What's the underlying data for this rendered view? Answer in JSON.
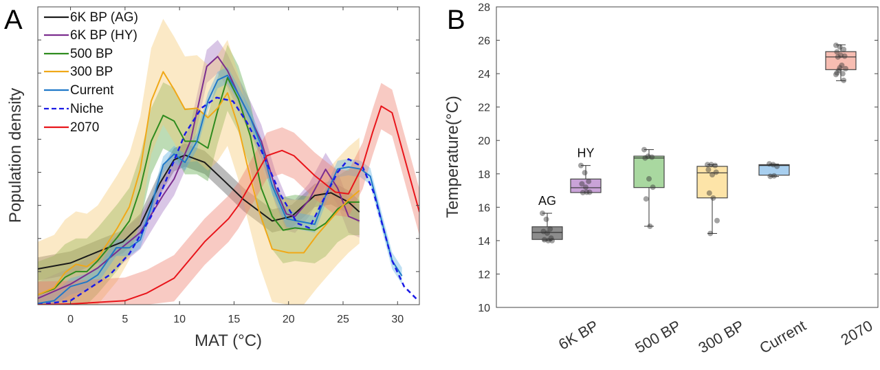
{
  "chart_data": [
    {
      "panel": "A",
      "type": "line",
      "xlabel": "MAT (°C)",
      "ylabel": "Population density",
      "xlim": [
        -3,
        32
      ],
      "ylim": [
        0,
        9
      ],
      "xticks": [
        0,
        5,
        10,
        15,
        20,
        25,
        30
      ],
      "y_tick_count": 9,
      "y_tick_labels_shown": false,
      "grid": false,
      "legend_position": "top-left",
      "series": [
        {
          "name": "6K BP (AG)",
          "color": "#1a1a1a",
          "dash": false,
          "band_color": "#555555",
          "band_halfwidth": 0.35,
          "x": [
            -3,
            0,
            2.5,
            4.8,
            6.4,
            8.2,
            9.5,
            10.5,
            12.3,
            14.1,
            15.9,
            18.5,
            20.3,
            22.4,
            23.9,
            25.5,
            26.5
          ],
          "y": [
            1.08,
            1.26,
            1.6,
            1.9,
            2.4,
            3.67,
            4.38,
            4.52,
            4.3,
            3.74,
            3.17,
            2.53,
            2.67,
            3.3,
            3.38,
            3.1,
            2.8
          ]
        },
        {
          "name": "6K BP (HY)",
          "color": "#7b2d8e",
          "dash": false,
          "band_color": "#a070c0",
          "band_halfwidth": 0.5,
          "x": [
            -3,
            0,
            2.5,
            4.8,
            6.4,
            8.5,
            9.5,
            11,
            12.5,
            13.5,
            14.4,
            15.4,
            16.5,
            17.5,
            18.8,
            19.8,
            20.6,
            21.9,
            23.4,
            24.5,
            25.5,
            26.5
          ],
          "y": [
            0.19,
            0.62,
            1.11,
            1.75,
            2.18,
            3.31,
            3.8,
            4.94,
            7.2,
            7.5,
            7.07,
            6.36,
            5.65,
            4.94,
            3.52,
            2.74,
            2.67,
            3.17,
            4.09,
            3.52,
            2.67,
            2.53
          ]
        },
        {
          "name": "500 BP",
          "color": "#2e8b1e",
          "dash": false,
          "band_color": "#5aa845",
          "band_halfwidth": 1.0,
          "x": [
            -3,
            -1.5,
            -0.5,
            0.5,
            1.5,
            2.5,
            4.3,
            5.4,
            6.4,
            7.4,
            8.5,
            9.5,
            10.5,
            11.6,
            12.6,
            13.5,
            14.4,
            15.4,
            16.5,
            17.5,
            18.5,
            19.5,
            20.6,
            22.4,
            23.4,
            24.5,
            25.5,
            26.5
          ],
          "y": [
            0.3,
            0.48,
            0.83,
            1.0,
            1.0,
            1.33,
            2.04,
            2.53,
            3.52,
            4.94,
            5.72,
            5.55,
            4.94,
            4.94,
            4.73,
            5.87,
            6.86,
            6.22,
            5.09,
            3.52,
            2.67,
            2.25,
            2.32,
            2.25,
            2.46,
            2.89,
            3.1,
            3.1
          ]
        },
        {
          "name": "300 BP",
          "color": "#f0a818",
          "dash": false,
          "band_color": "#f5c870",
          "band_halfwidth": 1.6,
          "x": [
            -3,
            -1.5,
            -0.5,
            0.5,
            1.5,
            2.5,
            4.3,
            5.4,
            6.4,
            7.4,
            8.5,
            9.5,
            10.5,
            11.6,
            12.6,
            13.5,
            14.4,
            15.4,
            16.2,
            17.3,
            18.5,
            20,
            21.4,
            22.6,
            24.5,
            25.5,
            26.5
          ],
          "y": [
            0.3,
            0.51,
            0.97,
            1.22,
            1.15,
            1.4,
            2.32,
            2.96,
            4.09,
            6.15,
            7.04,
            6.5,
            5.9,
            5.94,
            5.65,
            5.94,
            6.4,
            5.37,
            4.23,
            2.82,
            1.68,
            1.57,
            1.57,
            2.1,
            2.82,
            3.17,
            3.45
          ]
        },
        {
          "name": "Current",
          "color": "#1f78c8",
          "dash": false,
          "band_color": "#5aaee0",
          "band_halfwidth": 0.25,
          "x": [
            -3,
            -1.5,
            0,
            1.5,
            2.5,
            4.2,
            5.4,
            6.4,
            7.4,
            8.5,
            9.5,
            10.5,
            11.6,
            12.6,
            13.5,
            14.4,
            15.4,
            16.5,
            17.5,
            18.5,
            19.8,
            20.8,
            22.4,
            23.4,
            24.5,
            25.5,
            26.6,
            27.5,
            28.6,
            29.5,
            30.4
          ],
          "y": [
            0.04,
            0.12,
            0.55,
            0.69,
            0.9,
            1.72,
            1.72,
            1.96,
            2.96,
            4.23,
            4.55,
            4.3,
            4.94,
            6.15,
            6.79,
            6.93,
            6.36,
            5.65,
            4.8,
            3.6,
            2.6,
            2.53,
            2.43,
            3.3,
            4.1,
            4.16,
            4.1,
            3.88,
            2.46,
            1.33,
            0.87
          ]
        },
        {
          "name": "Niche",
          "color": "#1a1ae6",
          "dash": true,
          "band_color": null,
          "band_halfwidth": 0,
          "x": [
            -3,
            0,
            3.6,
            5.4,
            7.4,
            9,
            10.5,
            12,
            13.4,
            14.9,
            16.2,
            17.5,
            19.3,
            20.8,
            21.9,
            23.4,
            24.5,
            25.5,
            26.8,
            27.8,
            29.5,
            30.6,
            31.9
          ],
          "y": [
            0,
            0.12,
            0.9,
            1.54,
            2.67,
            3.95,
            5.16,
            5.94,
            6.26,
            6.15,
            5.5,
            4.66,
            3.3,
            2.46,
            2.32,
            3.3,
            4.0,
            4.4,
            4.16,
            3.4,
            1.33,
            0.55,
            0.12
          ]
        },
        {
          "name": "2070",
          "color": "#e8141a",
          "dash": false,
          "band_color": "#ee7a6a",
          "band_halfwidth": 0.7,
          "x": [
            -3,
            0,
            5,
            7,
            9.5,
            12.3,
            14.5,
            15.4,
            18,
            19.4,
            20.5,
            22.4,
            24.3,
            25.5,
            26.8,
            27.7,
            28.5,
            29.5,
            32
          ],
          "y": [
            0,
            0.02,
            0.12,
            0.35,
            0.8,
            1.9,
            2.6,
            3.0,
            4.5,
            4.66,
            4.5,
            3.9,
            3.4,
            3.35,
            4.2,
            5.2,
            6.0,
            5.8,
            2.8
          ]
        }
      ]
    },
    {
      "panel": "B",
      "type": "box",
      "ylabel": "Temperature(°C)",
      "ylim": [
        10,
        28
      ],
      "yticks": [
        10,
        12,
        14,
        16,
        18,
        20,
        22,
        24,
        26,
        28
      ],
      "grid": false,
      "categories": [
        "6K BP",
        "500 BP",
        "300 BP",
        "Current",
        "2070"
      ],
      "boxes": [
        {
          "category": "6K BP",
          "annotation": "AG",
          "color": "#8c8c8c",
          "min": 14.0,
          "q1": 14.07,
          "median": 14.49,
          "q3": 14.83,
          "max": 15.64,
          "points": [
            15.64,
            15.28,
            14.7,
            14.55,
            14.45,
            14.15,
            14.05,
            14.0,
            14.0
          ]
        },
        {
          "category": "6K BP",
          "annotation": "HY",
          "color": "#c9a3d8",
          "min": 16.88,
          "q1": 16.88,
          "median": 17.17,
          "q3": 17.69,
          "max": 18.5,
          "points": [
            18.5,
            18.07,
            17.55,
            17.4,
            17.2,
            16.9,
            16.88,
            16.9
          ]
        },
        {
          "category": "500 BP",
          "annotation": "",
          "color": "#a9d8a0",
          "min": 14.86,
          "q1": 17.18,
          "median": 18.95,
          "q3": 19.06,
          "max": 19.45,
          "points": [
            19.45,
            19.05,
            19.0,
            18.95,
            17.7,
            17.2,
            16.5,
            14.86
          ]
        },
        {
          "category": "300 BP",
          "annotation": "",
          "color": "#fde4a8",
          "min": 14.43,
          "q1": 16.56,
          "median": 18.06,
          "q3": 18.45,
          "max": 18.55,
          "points": [
            18.55,
            18.55,
            18.5,
            18.25,
            17.95,
            18.1,
            16.85,
            16.55,
            15.2,
            14.43
          ]
        },
        {
          "category": "Current",
          "annotation": "",
          "color": "#a8cfef",
          "min": 17.84,
          "q1": 17.92,
          "median": 18.5,
          "q3": 18.55,
          "max": 18.58,
          "points": [
            18.6,
            18.55,
            18.45,
            17.85,
            17.88
          ]
        },
        {
          "category": "2070",
          "annotation": "",
          "color": "#f7bdb2",
          "min": 23.58,
          "q1": 24.24,
          "median": 25.0,
          "q3": 25.32,
          "max": 25.73,
          "points": [
            25.7,
            25.6,
            25.45,
            25.3,
            25.1,
            25.05,
            25.0,
            24.5,
            24.3,
            24.2,
            24.0,
            23.95,
            24.35,
            23.6,
            24.05
          ]
        }
      ]
    }
  ],
  "labels": {
    "panel_a": "A",
    "panel_b": "B"
  }
}
